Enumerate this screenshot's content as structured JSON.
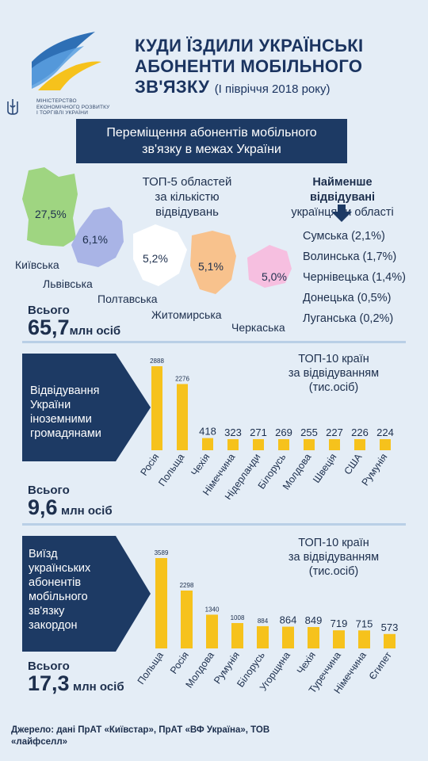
{
  "header": {
    "ministry": [
      "МІНІСТЕРСТВО",
      "ЕКОНОМІЧНОГО РОЗВИТКУ",
      "І ТОРГІВЛІ УКРАЇНИ"
    ],
    "title_lines": [
      "КУДИ ЇЗДИЛИ УКРАЇНСЬКІ",
      "АБОНЕНТИ МОБІЛЬНОГО"
    ],
    "title_last": "ЗВ'ЯЗКУ",
    "title_sub": "(І півріччя 2018 року)"
  },
  "banner": {
    "line1": "Переміщення абонентів мобільного",
    "line2": "зв'язку в межах України"
  },
  "domestic": {
    "top5_title": [
      "ТОП-5 областей",
      "за кількістю",
      "відвідувань"
    ],
    "regions": [
      {
        "name": "Київська",
        "share": "27,5%",
        "color": "#9fd581"
      },
      {
        "name": "Львівська",
        "share": "6,1%",
        "color": "#a9b4e6"
      },
      {
        "name": "Полтавська",
        "share": "5,2%",
        "color": "#ffffff"
      },
      {
        "name": "Житомирська",
        "share": "5,1%",
        "color": "#f8c28d"
      },
      {
        "name": "Черкаська",
        "share": "5,0%",
        "color": "#f6bfe0"
      }
    ],
    "least_title": [
      "Найменше відвідувані",
      "українцями області"
    ],
    "least": [
      "Сумська (2,1%)",
      "Волинська (1,7%)",
      "Чернівецька (1,4%)",
      "Донецька (0,5%)",
      "Луганська (0,2%)"
    ],
    "total_label": "Всього",
    "total_value": "65,7",
    "total_unit": "млн осіб"
  },
  "inbound": {
    "box_lines": [
      "Відвідування",
      "України",
      "іноземними",
      "громадянами"
    ],
    "top_title": [
      "ТОП-10 країн",
      "за відвідуванням",
      "(тис.осіб)"
    ],
    "total_label": "Всього",
    "total_value": "9,6",
    "total_unit": "млн осіб"
  },
  "outbound": {
    "box_lines": [
      "Виїзд",
      "українських",
      "абонентів",
      "мобільного",
      "зв'язку",
      "закордон"
    ],
    "top_title": [
      "ТОП-10 країн",
      "за відвідуванням",
      "(тис.осіб)"
    ],
    "total_label": "Всього",
    "total_value": "17,3",
    "total_unit": "млн осіб"
  },
  "footer": {
    "source": [
      "Джерело: дані ПрАТ «Київстар», ПрАТ «ВФ Україна», ТОВ",
      "«лайфселл»"
    ]
  },
  "colors": {
    "bar": "#f6c21c",
    "navy": "#1d3a64",
    "bg": "#e4edf6"
  },
  "chart_data": [
    {
      "type": "bar",
      "title": "ТОП-10 країн за відвідуванням (тис.осіб)",
      "categories": [
        "Росія",
        "Польща",
        "Чехія",
        "Німеччина",
        "Нідерланди",
        "Білорусь",
        "Молдова",
        "Швеція",
        "США",
        "Румунія"
      ],
      "values": [
        2888,
        2276,
        418,
        323,
        271,
        269,
        255,
        227,
        226,
        224
      ],
      "value_labels": [
        "2888",
        "2276",
        "418",
        "323",
        "271",
        "269",
        "255",
        "227",
        "226",
        "224"
      ],
      "unit": "тис.осіб"
    },
    {
      "type": "bar",
      "title": "ТОП-10 країн за відвідуванням (тис.осіб)",
      "categories": [
        "Польща",
        "Росія",
        "Молдова",
        "Румунія",
        "Білорусь",
        "Угорщина",
        "Чехія",
        "Туреччина",
        "Німеччина",
        "Єгипет"
      ],
      "values": [
        3589,
        2298,
        1340,
        1008,
        884,
        864,
        849,
        719,
        715,
        573
      ],
      "value_labels": [
        "3589",
        "2298",
        "1340",
        "1008",
        "884",
        "864",
        "849",
        "719",
        "715",
        "573"
      ],
      "unit": "тис.осіб"
    }
  ]
}
